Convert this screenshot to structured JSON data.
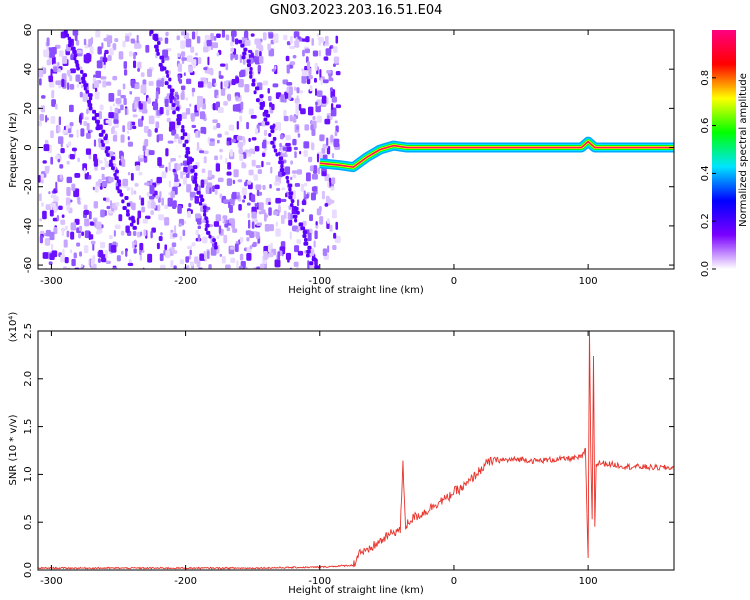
{
  "title": "GN03.2023.203.16.51.E04",
  "chart_data": [
    {
      "type": "heatmap",
      "xlabel": "Height of straight line (km)",
      "ylabel": "Frequency (Hz)",
      "xlim": [
        -310,
        164
      ],
      "ylim": [
        -62,
        60
      ],
      "x_ticks": [
        -300,
        -200,
        -100,
        0,
        100
      ],
      "x_tick_labels": [
        "-300",
        "-200",
        "-100",
        "0",
        "100"
      ],
      "y_ticks": [
        60,
        40,
        20,
        0,
        -20,
        -40,
        -60
      ],
      "y_tick_labels": [
        "60",
        "40",
        "20",
        "0",
        "-20",
        "-40",
        "-60"
      ],
      "colorbar": {
        "label": "Normalized spectral amplitude",
        "range": [
          0,
          1
        ],
        "ticks": [
          0.0,
          0.2,
          0.4,
          0.6,
          0.8
        ],
        "tick_labels": [
          "0.0",
          "0.2",
          "0.4",
          "0.6",
          "0.8"
        ],
        "colors": [
          "#ffffff",
          "#7a00ff",
          "#0000ff",
          "#00e5ff",
          "#00ff00",
          "#ffff00",
          "#ff0000",
          "#ff0080"
        ]
      },
      "noise_region_x": [
        -310,
        -88
      ],
      "carrier_track": [
        {
          "x": -100,
          "y": -8
        },
        {
          "x": -85,
          "y": -9
        },
        {
          "x": -75,
          "y": -10
        },
        {
          "x": -65,
          "y": -5
        },
        {
          "x": -55,
          "y": -1
        },
        {
          "x": -45,
          "y": 1
        },
        {
          "x": -35,
          "y": 0
        },
        {
          "x": -20,
          "y": 0
        },
        {
          "x": 0,
          "y": 0
        },
        {
          "x": 50,
          "y": 0
        },
        {
          "x": 95,
          "y": 0
        },
        {
          "x": 100,
          "y": 3
        },
        {
          "x": 105,
          "y": 0
        },
        {
          "x": 164,
          "y": 0
        }
      ],
      "noise_streaks": [
        {
          "x0": -290,
          "y0": 60,
          "x1": -240,
          "y1": -40
        },
        {
          "x0": -225,
          "y0": 60,
          "x1": -180,
          "y1": -50
        },
        {
          "x0": -160,
          "y0": 55,
          "x1": -105,
          "y1": -62
        }
      ]
    },
    {
      "type": "line",
      "xlabel": "Height of straight line (km)",
      "ylabel": "SNR (10 * v/v)",
      "y_multiplier": "(x10⁴)",
      "xlim": [
        -310,
        164
      ],
      "ylim": [
        0,
        2.5
      ],
      "x_ticks": [
        -300,
        -200,
        -100,
        0,
        100
      ],
      "x_tick_labels": [
        "-300",
        "-200",
        "-100",
        "0",
        "100"
      ],
      "y_ticks": [
        0.0,
        0.5,
        1.0,
        1.5,
        2.0,
        2.5
      ],
      "y_tick_labels": [
        "0.0",
        "0.5",
        "1.0",
        "1.5",
        "2.0",
        "2.5"
      ],
      "color": "#e8322a",
      "series": [
        {
          "x": [
            -310,
            -250,
            -200,
            -150,
            -100,
            -75,
            -70,
            -65,
            -60,
            -55,
            -50,
            -45,
            -40,
            -38,
            -36,
            -34,
            -30,
            -25,
            -20,
            -15,
            -10,
            -5,
            0,
            5,
            10,
            15,
            20,
            25,
            30,
            40,
            50,
            60,
            70,
            80,
            90,
            95,
            98,
            100,
            101,
            102,
            103,
            104,
            105,
            106,
            107,
            108,
            110,
            120,
            130,
            140,
            150,
            164
          ],
          "y": [
            0.02,
            0.02,
            0.02,
            0.02,
            0.03,
            0.05,
            0.2,
            0.18,
            0.25,
            0.3,
            0.35,
            0.4,
            0.42,
            1.1,
            0.45,
            0.5,
            0.55,
            0.58,
            0.62,
            0.68,
            0.72,
            0.75,
            0.82,
            0.85,
            0.9,
            0.98,
            1.05,
            1.12,
            1.15,
            1.15,
            1.16,
            1.14,
            1.15,
            1.16,
            1.17,
            1.18,
            1.25,
            0.1,
            2.5,
            1.2,
            0.55,
            2.25,
            0.45,
            1.12,
            1.1,
            1.12,
            1.12,
            1.1,
            1.08,
            1.08,
            1.07,
            1.07
          ]
        }
      ]
    }
  ]
}
